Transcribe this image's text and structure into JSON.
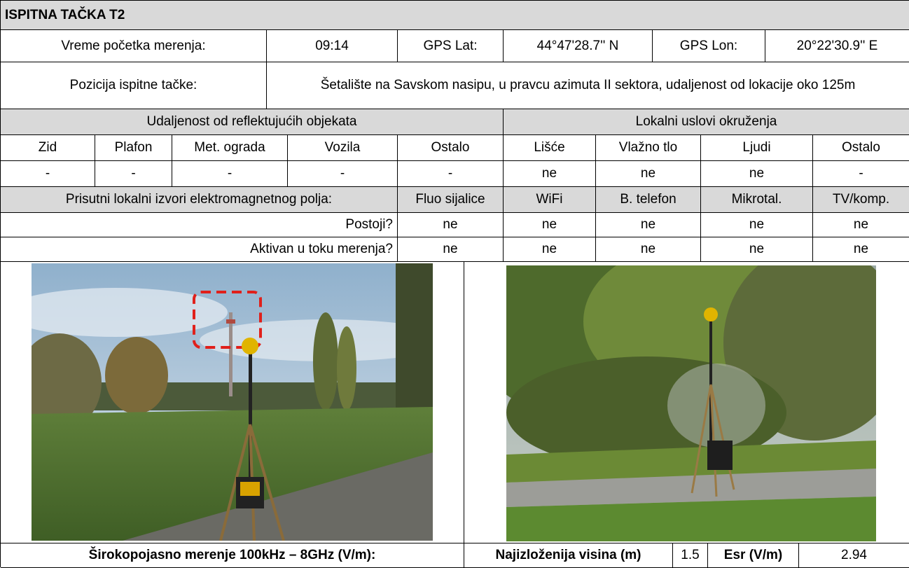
{
  "header": {
    "title": "ISPITNA TAČKA T2"
  },
  "info": {
    "start_time_label": "Vreme početka merenja:",
    "start_time": "09:14",
    "gps_lat_label": "GPS Lat:",
    "gps_lat": "44°47'28.7'' N",
    "gps_lon_label": "GPS Lon:",
    "gps_lon": "20°22'30.9'' E",
    "position_label": "Pozicija ispitne tačke:",
    "position": "Šetalište na Savskom nasipu, u pravcu  azimuta II sektora, udaljenost od lokacije oko 125m"
  },
  "reflective": {
    "title": "Udaljenost od reflektujućih objekata",
    "columns": [
      "Zid",
      "Plafon",
      "Met. ograda",
      "Vozila",
      "Ostalo"
    ],
    "values": [
      "-",
      "-",
      "-",
      "-",
      "-"
    ]
  },
  "environment": {
    "title": "Lokalni uslovi okruženja",
    "columns": [
      "Lišće",
      "Vlažno tlo",
      "Ljudi",
      "Ostalo"
    ],
    "values": [
      "ne",
      "ne",
      "ne",
      "-"
    ]
  },
  "sources": {
    "title": "Prisutni lokalni izvori elektromagnetnog polja:",
    "columns": [
      "Fluo sijalice",
      "WiFi",
      "B. telefon",
      "Mikrotal.",
      "TV/komp."
    ],
    "rows": [
      {
        "label": "Postoji?",
        "values": [
          "ne",
          "ne",
          "ne",
          "ne",
          "ne"
        ]
      },
      {
        "label": "Aktivan u toku merenja?",
        "values": [
          "ne",
          "ne",
          "ne",
          "ne",
          "ne"
        ]
      }
    ]
  },
  "footer": {
    "broadband_label": "Širokopojasno merenje 100kHz – 8GHz (V/m):",
    "height_label": "Najizloženija visina (m)",
    "height": 1.5,
    "esr_label": "Esr (V/m)",
    "esr": 2.94
  }
}
